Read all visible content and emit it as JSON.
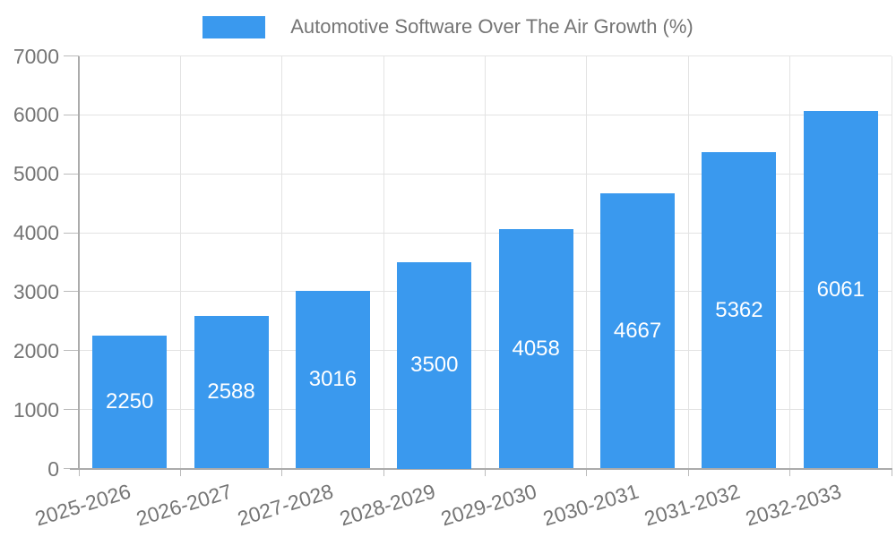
{
  "chart": {
    "legend_label": "Automotive Software Over The Air Growth (%)"
  },
  "colors": {
    "bar": "#3A99EE",
    "grid": "#E3E3E3",
    "axis": "#ABABAB",
    "tick": "#BBBBBB",
    "label_text": "#757575",
    "bar_label_text": "#FFFFFF",
    "background": "#FFFFFF"
  },
  "chart_data": {
    "type": "bar",
    "title": "Automotive Software Over The Air Growth (%)",
    "categories": [
      "2025-2026",
      "2026-2027",
      "2027-2028",
      "2028-2029",
      "2029-2030",
      "2030-2031",
      "2031-2032",
      "2032-2033"
    ],
    "values": [
      2250,
      2588,
      3016,
      3500,
      4058,
      4667,
      5362,
      6061
    ],
    "series_name": "Automotive Software Over The Air Growth (%)",
    "xlabel": "",
    "ylabel": "",
    "ylim": [
      0,
      7000
    ],
    "yticks": [
      0,
      1000,
      2000,
      3000,
      4000,
      5000,
      6000,
      7000
    ],
    "grid": true,
    "legend_position": "top",
    "bar_value_labels": "inside-center",
    "x_label_rotation_deg": -17
  }
}
